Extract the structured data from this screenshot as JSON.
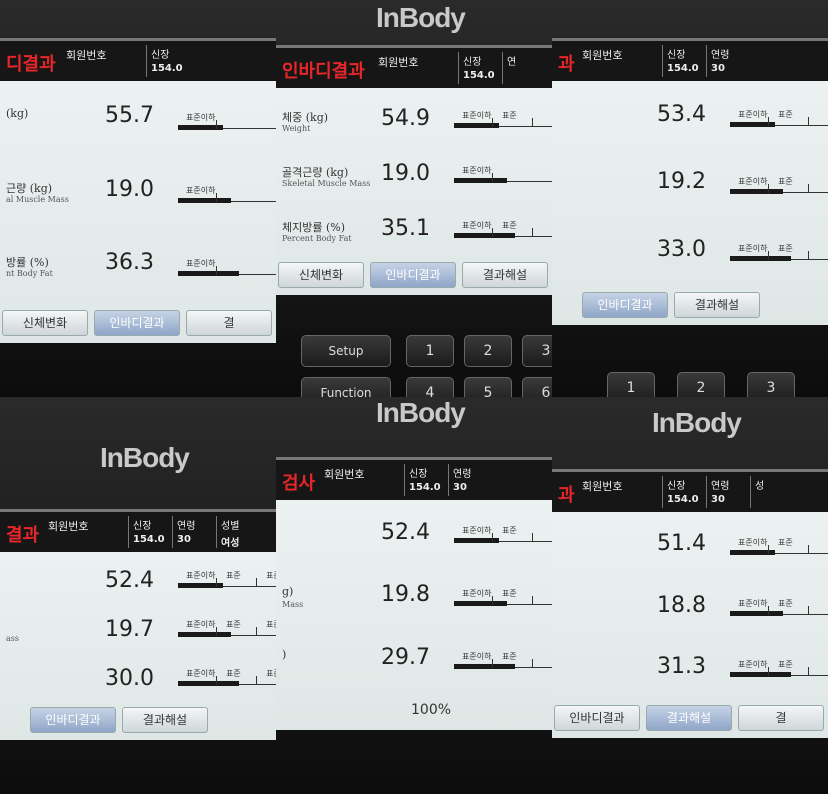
{
  "panels": [
    {
      "header": {
        "title": "디결과",
        "member": "회원번호",
        "fields": [
          {
            "label": "신장",
            "value": "154.0"
          }
        ]
      },
      "rows": [
        {
          "label": "(kg)",
          "value": "55.7",
          "scale": [
            "표준이하"
          ]
        },
        {
          "label": "근량 (kg)",
          "sublabel": "al Muscle Mass",
          "value": "19.0",
          "scale": [
            "표준이하"
          ]
        },
        {
          "label": "방률 (%)",
          "sublabel": "nt Body Fat",
          "value": "36.3",
          "scale": [
            "표준이하"
          ]
        }
      ],
      "tabs": [
        "신체변화",
        "인바디결과",
        "결"
      ]
    },
    {
      "logo": "InBody",
      "header": {
        "title": "인바디결과",
        "member": "회원번호",
        "fields": [
          {
            "label": "신장",
            "value": "154.0"
          },
          {
            "label": "연"
          }
        ]
      },
      "rows": [
        {
          "label": "체중 (kg)",
          "sublabel": "Weight",
          "value": "54.9",
          "scale": [
            "표준이하",
            "표준"
          ]
        },
        {
          "label": "골격근량 (kg)",
          "sublabel": "Skeletal Muscle Mass",
          "value": "19.0",
          "scale": [
            "표준이하"
          ]
        },
        {
          "label": "체지방률 (%)",
          "sublabel": "Percent Body Fat",
          "value": "35.1",
          "scale": [
            "표준이하",
            "표준"
          ]
        }
      ],
      "tabs": [
        "신체변화",
        "인바디결과",
        "결과해설"
      ],
      "keys": [
        "Setup",
        "1",
        "2",
        "3",
        "Function",
        "4",
        "5",
        "6"
      ]
    },
    {
      "header": {
        "title": "과",
        "member": "회원번호",
        "fields": [
          {
            "label": "신장",
            "value": "154.0"
          },
          {
            "label": "연령",
            "value": "30"
          }
        ]
      },
      "rows": [
        {
          "value": "53.4",
          "scale": [
            "표준이하",
            "표준"
          ]
        },
        {
          "value": "19.2",
          "scale": [
            "표준이하",
            "표준"
          ]
        },
        {
          "value": "33.0",
          "scale": [
            "표준이하",
            "표준"
          ]
        }
      ],
      "tabs": [
        "인바디결과",
        "결과해설"
      ],
      "keys": [
        "1",
        "2",
        "3"
      ]
    },
    {
      "logo": "InBody",
      "header": {
        "title": "결과",
        "member": "회원번호",
        "fields": [
          {
            "label": "신장",
            "value": "154.0"
          },
          {
            "label": "연령",
            "value": "30"
          },
          {
            "label": "성별",
            "value": "여성"
          }
        ]
      },
      "rows": [
        {
          "value": "52.4",
          "scale": [
            "표준이하",
            "표준",
            "표준이상"
          ]
        },
        {
          "sublabel": "ass",
          "value": "19.7",
          "scale": [
            "표준이하",
            "표준",
            "표준이상"
          ]
        },
        {
          "value": "30.0",
          "scale": [
            "표준이하",
            "표준",
            "표준이상"
          ]
        }
      ],
      "tabs": [
        "인바디결과",
        "결과해설"
      ]
    },
    {
      "logo": "InBody",
      "header": {
        "title": "검사",
        "member": "회원번호",
        "fields": [
          {
            "label": "신장",
            "value": "154.0"
          },
          {
            "label": "연령",
            "value": "30"
          }
        ]
      },
      "rows": [
        {
          "value": "52.4",
          "scale": [
            "표준이하",
            "표준"
          ]
        },
        {
          "label": "g)",
          "sublabel": "Mass",
          "value": "19.8",
          "scale": [
            "표준이하",
            "표준"
          ]
        },
        {
          "label": ")",
          "value": "29.7",
          "scale": [
            "표준이하",
            "표준"
          ]
        }
      ],
      "footer": "100%"
    },
    {
      "logo": "InBody",
      "header": {
        "title": "과",
        "member": "회원번호",
        "fields": [
          {
            "label": "신장",
            "value": "154.0"
          },
          {
            "label": "연령",
            "value": "30"
          },
          {
            "label": "성"
          }
        ]
      },
      "rows": [
        {
          "value": "51.4",
          "scale": [
            "표준이하",
            "표준"
          ]
        },
        {
          "value": "18.8",
          "scale": [
            "표준이하",
            "표준"
          ]
        },
        {
          "value": "31.3",
          "scale": [
            "표준이하",
            "표준"
          ]
        }
      ],
      "tabs": [
        "인바디결과",
        "결과해설",
        "결"
      ]
    }
  ]
}
